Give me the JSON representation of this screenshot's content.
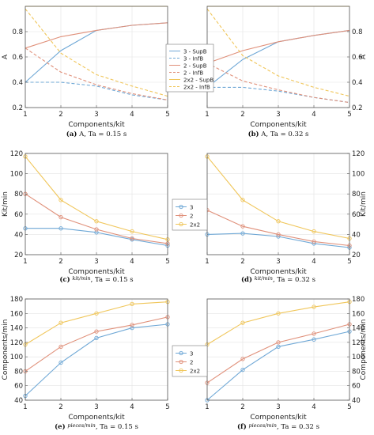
{
  "colors": {
    "s3": "#6fa8d6",
    "s2": "#e0907a",
    "s2x2": "#f0c65a"
  },
  "chart_data": [
    {
      "id": "a",
      "type": "line",
      "caption_label": "(a)",
      "caption_text": "A, Ta = 0.15 s",
      "xlabel": "Components/kit",
      "ylabel": "A",
      "xlim": [
        1,
        5
      ],
      "ylim": [
        0.2,
        1.0
      ],
      "xticks": [
        1,
        2,
        3,
        4,
        5
      ],
      "yticks": [
        0.2,
        0.4,
        0.6,
        0.8
      ],
      "ytick_labels": [
        "0.2",
        "0.4",
        "0.6",
        "0.8"
      ],
      "ylabel_side": "left",
      "grid": true,
      "markers": false,
      "x": [
        1,
        2,
        3,
        4,
        5
      ],
      "series": [
        {
          "name": "3 - SupB",
          "key": "s3",
          "dash": false,
          "values": [
            0.4,
            0.65,
            0.81,
            0.85,
            0.87
          ]
        },
        {
          "name": "3 - InfB",
          "key": "s3",
          "dash": true,
          "values": [
            0.4,
            0.4,
            0.37,
            0.3,
            0.26
          ]
        },
        {
          "name": "2 - SupB",
          "key": "s2",
          "dash": false,
          "values": [
            0.67,
            0.76,
            0.81,
            0.85,
            0.87
          ]
        },
        {
          "name": "2 - InfB",
          "key": "s2",
          "dash": true,
          "values": [
            0.67,
            0.48,
            0.38,
            0.31,
            0.26
          ]
        },
        {
          "name": "2x2 - SupB",
          "key": "s2x2",
          "dash": false,
          "values": [
            1.0,
            1.0,
            1.0,
            1.0,
            1.0
          ]
        },
        {
          "name": "2x2 - InfB",
          "key": "s2x2",
          "dash": true,
          "values": [
            0.98,
            0.63,
            0.46,
            0.37,
            0.29
          ]
        }
      ]
    },
    {
      "id": "b",
      "type": "line",
      "caption_label": "(b)",
      "caption_text": "A, Ta = 0.32 s",
      "xlabel": "Components/kit",
      "ylabel": "A",
      "xlim": [
        1,
        5
      ],
      "ylim": [
        0.2,
        1.0
      ],
      "xticks": [
        1,
        2,
        3,
        4,
        5
      ],
      "yticks": [
        0.2,
        0.4,
        0.6,
        0.8
      ],
      "ytick_labels": [
        "0.2",
        "0.4",
        "0.6",
        "0.8"
      ],
      "ylabel_side": "right",
      "grid": true,
      "markers": false,
      "x": [
        1,
        2,
        3,
        4,
        5
      ],
      "series": [
        {
          "name": "3 - SupB",
          "key": "s3",
          "dash": false,
          "values": [
            0.36,
            0.58,
            0.72,
            0.77,
            0.81
          ]
        },
        {
          "name": "3 - InfB",
          "key": "s3",
          "dash": true,
          "values": [
            0.36,
            0.36,
            0.33,
            0.28,
            0.24
          ]
        },
        {
          "name": "2 - SupB",
          "key": "s2",
          "dash": false,
          "values": [
            0.55,
            0.65,
            0.72,
            0.77,
            0.81
          ]
        },
        {
          "name": "2 - InfB",
          "key": "s2",
          "dash": true,
          "values": [
            0.55,
            0.41,
            0.34,
            0.28,
            0.24
          ]
        },
        {
          "name": "2x2 - SupB",
          "key": "s2x2",
          "dash": false,
          "values": [
            1.0,
            1.0,
            1.0,
            1.0,
            1.0
          ]
        },
        {
          "name": "2x2 - InfB",
          "key": "s2x2",
          "dash": true,
          "values": [
            0.98,
            0.61,
            0.45,
            0.36,
            0.29
          ]
        }
      ]
    },
    {
      "id": "c",
      "type": "line",
      "caption_label": "(c)",
      "caption_unit": "kit/min",
      "caption_text": ", Ta = 0.15 s",
      "xlabel": "Components/kit",
      "ylabel": "Kit/min",
      "xlim": [
        1,
        5
      ],
      "ylim": [
        20,
        120
      ],
      "xticks": [
        1,
        2,
        3,
        4,
        5
      ],
      "yticks": [
        20,
        40,
        60,
        80,
        100,
        120
      ],
      "ytick_labels": [
        "20",
        "40",
        "60",
        "80",
        "100",
        "120"
      ],
      "ylabel_side": "left",
      "grid": true,
      "markers": true,
      "x": [
        1,
        2,
        3,
        4,
        5
      ],
      "series": [
        {
          "name": "3",
          "key": "s3",
          "dash": false,
          "values": [
            46,
            46,
            42,
            35,
            29
          ]
        },
        {
          "name": "2",
          "key": "s2",
          "dash": false,
          "values": [
            80,
            57,
            45,
            36,
            31
          ]
        },
        {
          "name": "2x2",
          "key": "s2x2",
          "dash": false,
          "values": [
            117,
            74,
            53,
            43,
            35
          ]
        }
      ]
    },
    {
      "id": "d",
      "type": "line",
      "caption_label": "(d)",
      "caption_unit": "kit/min",
      "caption_text": ", Ta = 0.32 s",
      "xlabel": "Components/kit",
      "ylabel": "Kit/min",
      "xlim": [
        1,
        5
      ],
      "ylim": [
        20,
        120
      ],
      "xticks": [
        1,
        2,
        3,
        4,
        5
      ],
      "yticks": [
        20,
        40,
        60,
        80,
        100,
        120
      ],
      "ytick_labels": [
        "20",
        "40",
        "60",
        "80",
        "100",
        "120"
      ],
      "ylabel_side": "right",
      "grid": true,
      "markers": true,
      "x": [
        1,
        2,
        3,
        4,
        5
      ],
      "series": [
        {
          "name": "3",
          "key": "s3",
          "dash": false,
          "values": [
            40,
            41,
            38,
            31,
            27
          ]
        },
        {
          "name": "2",
          "key": "s2",
          "dash": false,
          "values": [
            64,
            48,
            40,
            33,
            29
          ]
        },
        {
          "name": "2x2",
          "key": "s2x2",
          "dash": false,
          "values": [
            117,
            74,
            53,
            43,
            36
          ]
        }
      ]
    },
    {
      "id": "e",
      "type": "line",
      "caption_label": "(e)",
      "caption_unit": "pieces/min",
      "caption_text": ", Ta = 0.15 s",
      "xlabel": "Components/kit",
      "ylabel": "Components/min",
      "xlim": [
        1,
        5
      ],
      "ylim": [
        40,
        180
      ],
      "xticks": [
        1,
        2,
        3,
        4,
        5
      ],
      "yticks": [
        40,
        60,
        80,
        100,
        120,
        140,
        160,
        180
      ],
      "ytick_labels": [
        "40",
        "60",
        "80",
        "100",
        "120",
        "140",
        "160",
        "180"
      ],
      "ylabel_side": "left",
      "grid": true,
      "markers": true,
      "x": [
        1,
        2,
        3,
        4,
        5
      ],
      "series": [
        {
          "name": "3",
          "key": "s3",
          "dash": false,
          "values": [
            46,
            92,
            126,
            140,
            145
          ]
        },
        {
          "name": "2",
          "key": "s2",
          "dash": false,
          "values": [
            80,
            114,
            135,
            144,
            155
          ]
        },
        {
          "name": "2x2",
          "key": "s2x2",
          "dash": false,
          "values": [
            117,
            147,
            160,
            173,
            176
          ]
        }
      ]
    },
    {
      "id": "f",
      "type": "line",
      "caption_label": "(f)",
      "caption_unit": "pieces/min",
      "caption_text": ", Ta = 0.32 s",
      "xlabel": "Components/kit",
      "ylabel": "Components/min",
      "xlim": [
        1,
        5
      ],
      "ylim": [
        40,
        180
      ],
      "xticks": [
        1,
        2,
        3,
        4,
        5
      ],
      "yticks": [
        40,
        60,
        80,
        100,
        120,
        140,
        160,
        180
      ],
      "ytick_labels": [
        "40",
        "60",
        "80",
        "100",
        "120",
        "140",
        "160",
        "180"
      ],
      "ylabel_side": "right",
      "grid": true,
      "markers": true,
      "x": [
        1,
        2,
        3,
        4,
        5
      ],
      "series": [
        {
          "name": "3",
          "key": "s3",
          "dash": false,
          "values": [
            40,
            82,
            114,
            124,
            135
          ]
        },
        {
          "name": "2",
          "key": "s2",
          "dash": false,
          "values": [
            64,
            97,
            120,
            132,
            145
          ]
        },
        {
          "name": "2x2",
          "key": "s2x2",
          "dash": false,
          "values": [
            117,
            147,
            160,
            169,
            176
          ]
        }
      ]
    }
  ],
  "legends": [
    {
      "id": "legend-top",
      "entries": [
        "3 - SupB",
        "3 - InfB",
        "2 - SupB",
        "2 - InfB",
        "2x2 - SupB",
        "2x2 - InfB"
      ]
    },
    {
      "id": "legend-mid",
      "entries": [
        "3",
        "2",
        "2x2"
      ]
    },
    {
      "id": "legend-bottom",
      "entries": [
        "3",
        "2",
        "2x2"
      ]
    }
  ]
}
